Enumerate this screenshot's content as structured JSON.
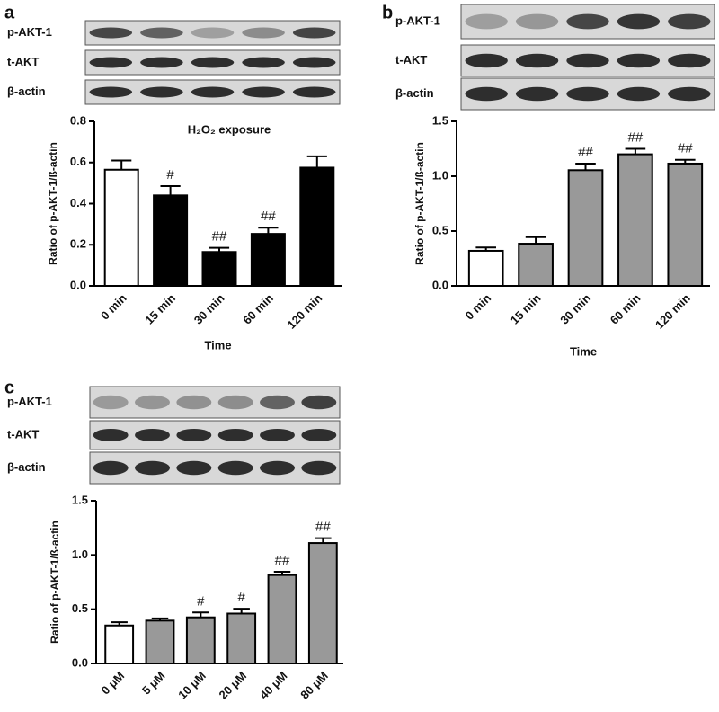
{
  "chart_data": [
    {
      "type": "bar",
      "panel": "a",
      "blot_labels": [
        "p-AKT-1",
        "t-AKT",
        "β-actin"
      ],
      "annotation": "H₂O₂ exposure",
      "y_label": "Ratio of p-AKT-1/ß-actin",
      "x_label": "Time",
      "categories": [
        "0 min",
        "15 min",
        "30 min",
        "60 min",
        "120 min"
      ],
      "values": [
        0.565,
        0.44,
        0.165,
        0.253,
        0.575
      ],
      "errors": [
        0.045,
        0.045,
        0.02,
        0.03,
        0.055
      ],
      "colors": [
        "#ffffff",
        "#000000",
        "#000000",
        "#000000",
        "#000000"
      ],
      "marks": [
        null,
        "#",
        "##",
        "##",
        null
      ],
      "ylim": [
        0,
        0.8
      ],
      "yticks": [
        {
          "value": 0,
          "label": "0.0"
        },
        0.2,
        0.4,
        0.6,
        0.8
      ]
    },
    {
      "type": "bar",
      "panel": "b",
      "blot_labels": [
        "p-AKT-1",
        "t-AKT",
        "β-actin"
      ],
      "y_label": "Ratio of p-AKT-1/ß-actin",
      "x_label": "Time",
      "categories": [
        "0 min",
        "15 min",
        "30 min",
        "60 min",
        "120 min"
      ],
      "values": [
        0.32,
        0.385,
        1.055,
        1.2,
        1.115
      ],
      "errors": [
        0.03,
        0.06,
        0.06,
        0.05,
        0.035
      ],
      "colors": [
        "#ffffff",
        "#999999",
        "#999999",
        "#999999",
        "#999999"
      ],
      "marks": [
        null,
        null,
        "##",
        "##",
        "##"
      ],
      "ylim": [
        0,
        1.5
      ],
      "yticks": [
        {
          "value": 0,
          "label": "0.0"
        },
        0.5,
        {
          "value": 1,
          "label": "1.0"
        },
        1.5
      ]
    },
    {
      "type": "bar",
      "panel": "c",
      "blot_labels": [
        "p-AKT-1",
        "t-AKT",
        "β-actin"
      ],
      "y_label": "Ratio of p-AKT-1/ß-actin",
      "categories": [
        "0 μM",
        "5 μM",
        "10 μM",
        "20 μM",
        "40 μM",
        "80 μM"
      ],
      "values": [
        0.35,
        0.395,
        0.425,
        0.46,
        0.815,
        1.11
      ],
      "errors": [
        0.03,
        0.02,
        0.045,
        0.045,
        0.03,
        0.045
      ],
      "colors": [
        "#ffffff",
        "#999999",
        "#999999",
        "#999999",
        "#999999",
        "#999999"
      ],
      "marks": [
        null,
        null,
        "#",
        "#",
        "##",
        "##"
      ],
      "ylim": [
        0,
        1.5
      ],
      "yticks": [
        {
          "value": 0,
          "label": "0.0"
        },
        0.5,
        {
          "value": 1,
          "label": "1.0"
        },
        1.5
      ]
    }
  ]
}
